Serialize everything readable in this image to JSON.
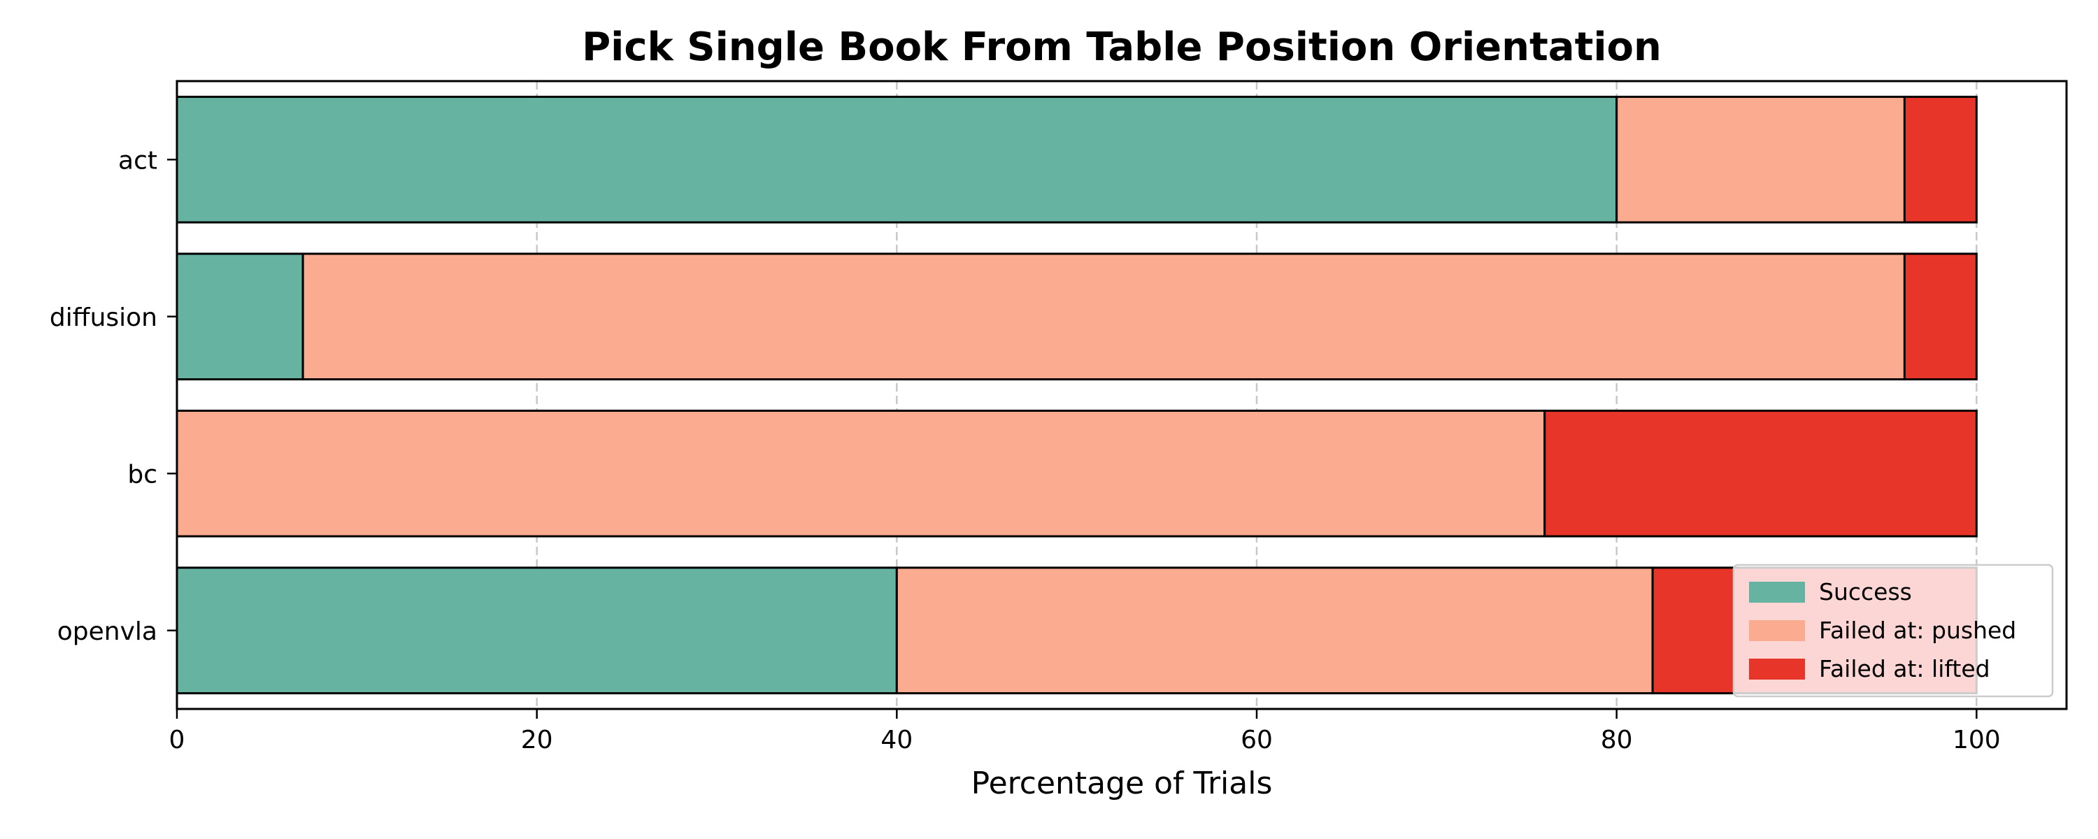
{
  "chart_data": {
    "type": "bar",
    "orientation": "horizontal",
    "stacked": true,
    "title": "Pick Single Book From Table Position Orientation",
    "xlabel": "Percentage of Trials",
    "ylabel": "",
    "xlim": [
      0,
      105
    ],
    "xticks": [
      0,
      20,
      40,
      60,
      80,
      100
    ],
    "grid": "x, dashed",
    "legend_position": "lower-right",
    "categories": [
      "act",
      "diffusion",
      "bc",
      "openvla"
    ],
    "series": [
      {
        "name": "Success",
        "color": "#67b3a2",
        "values": [
          80,
          7,
          0,
          40
        ]
      },
      {
        "name": "Failed at: pushed",
        "color": "#fbab8f",
        "values": [
          16,
          89,
          76,
          42
        ]
      },
      {
        "name": "Failed at: lifted",
        "color": "#e8352a",
        "values": [
          4,
          4,
          24,
          18
        ]
      }
    ]
  }
}
